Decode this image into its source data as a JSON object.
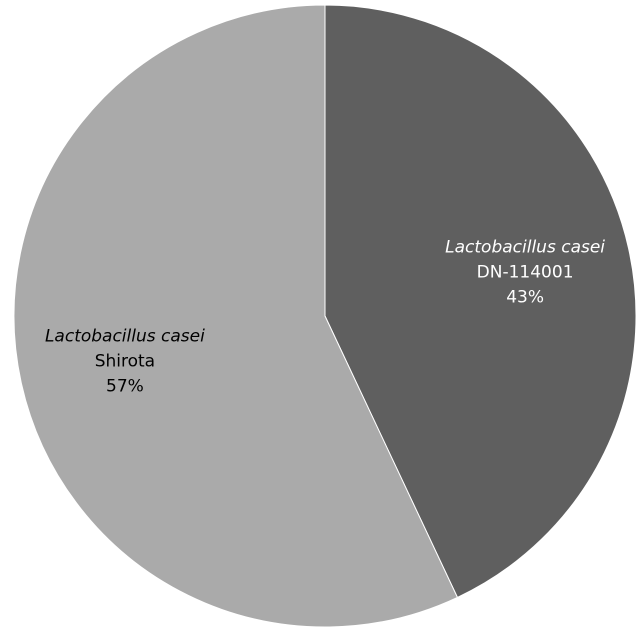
{
  "chart_data": {
    "type": "pie",
    "start": "12 o'clock",
    "direction": "clockwise",
    "slices": [
      {
        "species": "Lactobacillus casei",
        "strain": "DN-114001",
        "value": 43,
        "percent_label": "43%",
        "color": "#5f5f5f",
        "label_color": "#ffffff"
      },
      {
        "species": "Lactobacillus casei",
        "strain": "Shirota",
        "value": 57,
        "percent_label": "57%",
        "color": "#aaaaaa",
        "label_color": "#000000"
      }
    ]
  }
}
